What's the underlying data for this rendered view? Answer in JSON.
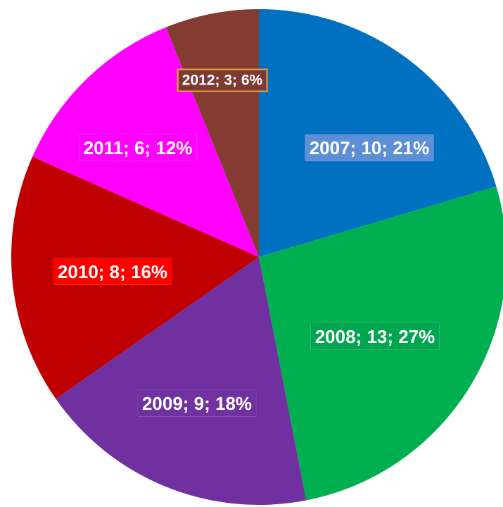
{
  "chart_data": {
    "type": "pie",
    "categories": [
      "2007",
      "2008",
      "2009",
      "2010",
      "2011",
      "2012"
    ],
    "values": [
      10,
      13,
      9,
      8,
      6,
      3
    ],
    "value_labels": [
      "2007; 10; 21%",
      "2008; 13; 27%",
      "2009; 9; 18%",
      "2010; 8; 16%",
      "2011; 6; 12%",
      "2012; 3; 6%"
    ],
    "colors": [
      "#0070c0",
      "#00b050",
      "#7030a0",
      "#c00000",
      "#ff00ff",
      "#843c32"
    ],
    "label_colors": [
      "#5b8fd6",
      "#00a550",
      "#7030a0",
      "#ff0000",
      "#ff00ff",
      "#7b3b30"
    ]
  }
}
